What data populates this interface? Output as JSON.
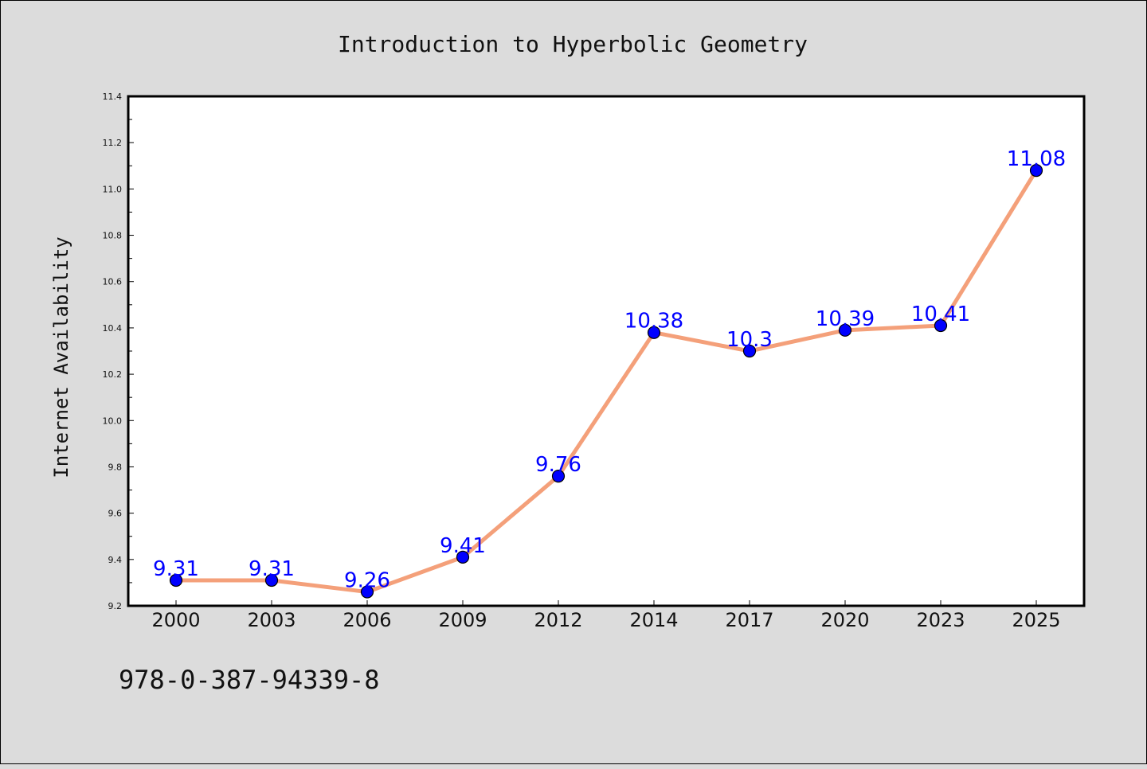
{
  "chart_data": {
    "type": "line",
    "title": "Introduction to Hyperbolic Geometry",
    "xlabel": "",
    "ylabel": "Internet Availability",
    "categories": [
      "2000",
      "2003",
      "2006",
      "2009",
      "2012",
      "2014",
      "2017",
      "2020",
      "2023",
      "2025"
    ],
    "series": [
      {
        "values": [
          9.31,
          9.31,
          9.26,
          9.41,
          9.76,
          10.38,
          10.3,
          10.39,
          10.41,
          11.08
        ],
        "data_labels": [
          "9.31",
          "9.31",
          "9.26",
          "9.41",
          "9.76",
          "10.38",
          "10.3",
          "10.39",
          "10.41",
          "11.08"
        ]
      }
    ],
    "ylim": [
      9.2,
      11.4
    ],
    "yticks": [
      "9.2",
      "9.4",
      "9.6",
      "9.8",
      "10.0",
      "10.2",
      "10.4",
      "10.6",
      "10.8",
      "11.0",
      "11.2",
      "11.4"
    ],
    "grid": false,
    "legend": "none",
    "colors": {
      "line": "#f4a07a",
      "marker": "#0000ff",
      "data_label": "#0000ff",
      "background": "#dcdcdc",
      "plot_background": "#ffffff"
    }
  },
  "footnote": "978-0-387-94339-8"
}
